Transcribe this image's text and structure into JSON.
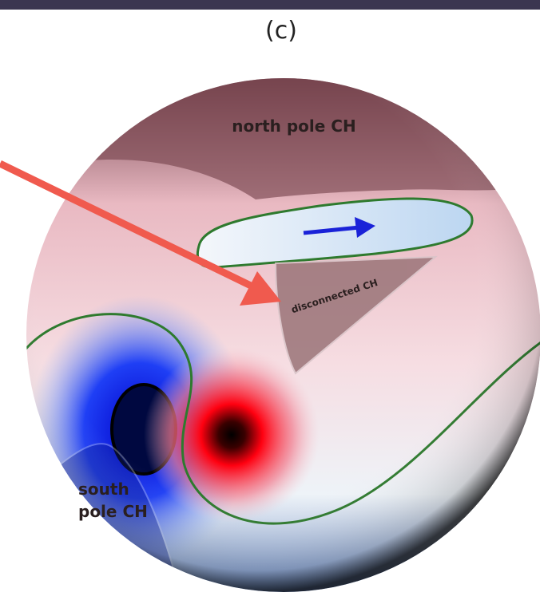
{
  "panel_label": "(c)",
  "regions": {
    "north": "north pole CH",
    "disconnected": "disconnected CH",
    "south": [
      "south",
      "pole CH"
    ]
  }
}
